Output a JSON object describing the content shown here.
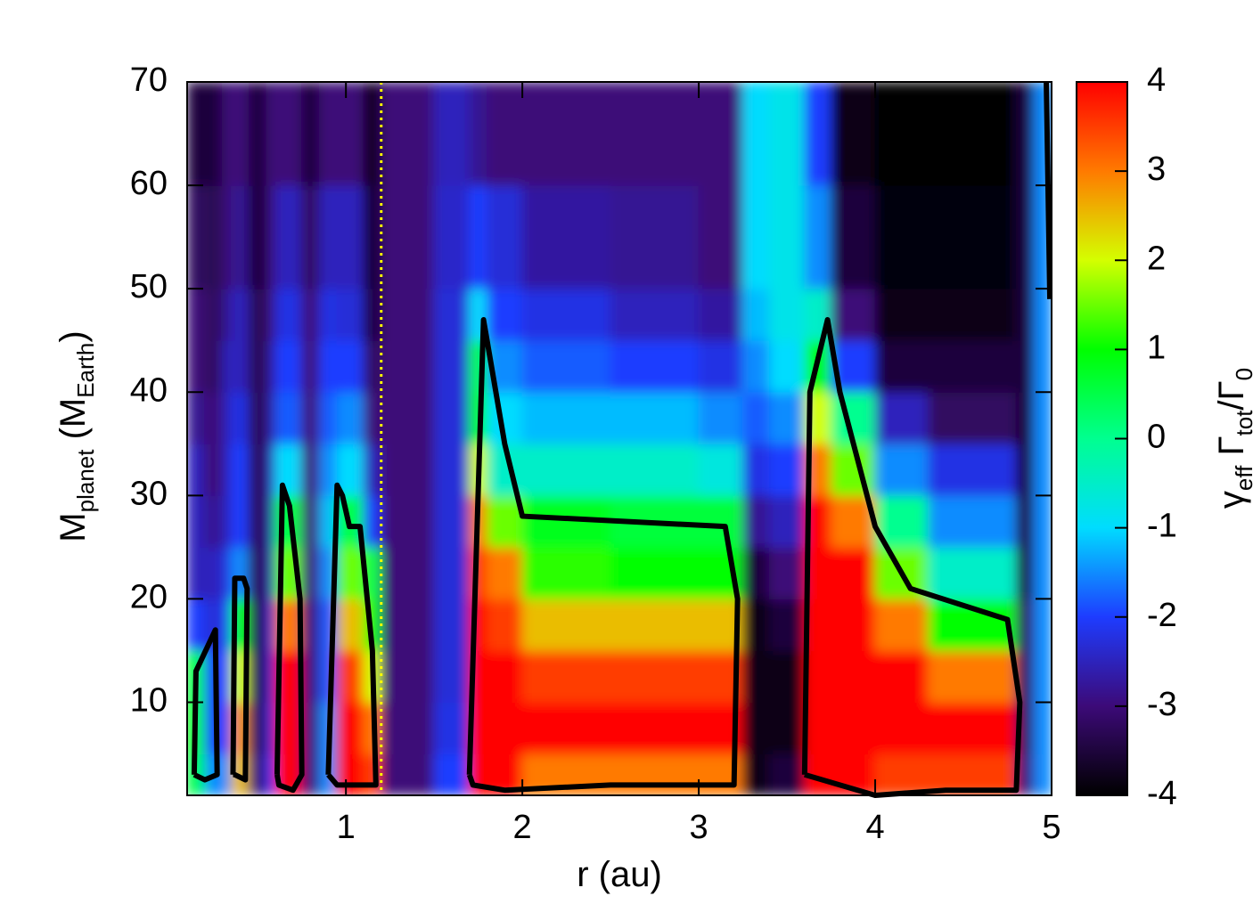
{
  "chart_data": {
    "type": "heatmap",
    "xlabel": "r (au)",
    "ylabel_parts": [
      "M",
      "planet",
      " (M",
      "Earth",
      ")"
    ],
    "colorbar_label_parts": [
      "γ",
      "eff",
      " Γ",
      "tot",
      "/Γ",
      "0"
    ],
    "x_edges": [
      0.1,
      0.2,
      0.3,
      0.35,
      0.45,
      0.55,
      0.6,
      0.75,
      0.85,
      0.95,
      1.1,
      1.2,
      1.5,
      1.7,
      1.8,
      2.0,
      2.5,
      3.0,
      3.25,
      3.4,
      3.6,
      3.75,
      4.0,
      4.3,
      4.8,
      4.9,
      5.0
    ],
    "y_edges": [
      1,
      5,
      10,
      15,
      20,
      25,
      30,
      35,
      40,
      45,
      50,
      60,
      70
    ],
    "values": [
      [
        0.5,
        0.8,
        0.6,
        -2,
        -2.5,
        -2.5,
        -2.5,
        -2.8,
        -3,
        -3,
        -3.2,
        -3.5
      ],
      [
        -1.5,
        -2,
        -2,
        -2.3,
        -2.5,
        -2.8,
        -3,
        -3,
        -3.2,
        -3.2,
        -3.3,
        -3.5
      ],
      [
        -1.5,
        -2,
        -2,
        -2,
        -2.2,
        -2.5,
        -2.5,
        -2.5,
        -2.5,
        -2.8,
        -3,
        -3
      ],
      [
        2.5,
        2.8,
        2,
        1,
        -1.5,
        -2,
        -2,
        -2.2,
        -2.5,
        -2.5,
        -2.8,
        -3
      ],
      [
        -3,
        -3.2,
        -3.3,
        -3.3,
        -3.3,
        -3.3,
        -3.3,
        -3.3,
        -3.3,
        -3.3,
        -3.5,
        -3.5
      ],
      [
        -2,
        -2.2,
        -2.3,
        -2.3,
        -2.5,
        -2.5,
        -2.5,
        -2.7,
        -2.8,
        -3,
        -3,
        -3
      ],
      [
        4,
        4,
        4,
        3,
        1.5,
        0.5,
        -1,
        -1.8,
        -2,
        -2.2,
        -2.5,
        -3
      ],
      [
        -3,
        -3,
        -3,
        -3,
        -3,
        -3,
        -3,
        -3,
        -3,
        -3,
        -3.2,
        -3.5
      ],
      [
        -1.5,
        -1.5,
        -1.8,
        -1.8,
        -1.5,
        -1.2,
        -1.5,
        -1.8,
        -2,
        -2.2,
        -2.5,
        -3
      ],
      [
        4,
        4,
        3.5,
        2.5,
        1.5,
        0.5,
        -1,
        -1.5,
        -2,
        -2.3,
        -2.5,
        -3
      ],
      [
        3.5,
        3,
        2,
        1,
        0.5,
        -2,
        -2.5,
        -3,
        -3.2,
        -3.5,
        -3.6,
        -3.8
      ],
      [
        -3,
        -3,
        -3,
        -3,
        -3,
        -3,
        -3,
        -3,
        -3,
        -3,
        -3,
        -3
      ],
      [
        -2,
        -2.2,
        -2.3,
        -2.3,
        -2.3,
        -2.3,
        -2.3,
        -2.3,
        -2.3,
        -2.3,
        -2.4,
        -2.5
      ],
      [
        4,
        4,
        4,
        4,
        3.5,
        3,
        2,
        1,
        0.5,
        -1,
        -2,
        -2.8
      ],
      [
        4,
        4,
        4,
        3.5,
        3,
        1.5,
        -0.5,
        -1,
        -1.5,
        -2,
        -2.3,
        -3
      ],
      [
        3,
        4,
        3.5,
        2.5,
        1.2,
        0.8,
        -0.5,
        -1.2,
        -1.8,
        -2.2,
        -2.7,
        -3
      ],
      [
        3,
        4,
        3.5,
        2.5,
        1,
        0.6,
        -0.5,
        -1.2,
        -2,
        -2.5,
        -2.8,
        -3
      ],
      [
        3,
        4,
        3.5,
        2.5,
        1,
        0.6,
        -0.7,
        -1.5,
        -2.2,
        -2.7,
        -3,
        -3
      ],
      [
        -3.8,
        -3.8,
        -3.8,
        -3.8,
        -3.5,
        -2.8,
        -2.2,
        -1.8,
        -1.5,
        -1.2,
        -1,
        -1
      ],
      [
        -3.5,
        -3.8,
        -3.8,
        -3.5,
        -3,
        -2.5,
        -2,
        -1.5,
        -1,
        -0.8,
        -0.8,
        -0.8
      ],
      [
        4,
        4,
        4,
        4,
        4,
        4,
        3,
        2,
        1,
        -0.5,
        -1.5,
        -2
      ],
      [
        4,
        4,
        4,
        4,
        4,
        3,
        1.5,
        0,
        -2,
        -3,
        -3.5,
        -3.8
      ],
      [
        3.5,
        4,
        4,
        3,
        1.5,
        0,
        -1.5,
        -2.5,
        -3.5,
        -3.8,
        -3.9,
        -4
      ],
      [
        3.5,
        4,
        3,
        1,
        -0.5,
        -1.5,
        -2.2,
        -3.2,
        -3.5,
        -3.8,
        -3.9,
        -4
      ],
      [
        -3,
        -3.2,
        -3.2,
        -3.2,
        -3.5,
        -3.5,
        -3.5,
        -3.5,
        -3.5,
        -3.5,
        -3.5,
        -3.5
      ],
      [
        -1.5,
        -1.5,
        -1.5,
        -1.5,
        -1.5,
        -1.5,
        -1.5,
        -1.5,
        -1.5,
        -1.5,
        -1.5,
        -1.5
      ]
    ],
    "contours": [
      {
        "x": [
          0.14,
          0.15,
          0.26,
          0.27,
          0.2,
          0.14
        ],
        "y": [
          3,
          13,
          17,
          3,
          2.5,
          3
        ]
      },
      {
        "x": [
          0.36,
          0.37,
          0.42,
          0.44,
          0.43,
          0.37,
          0.36
        ],
        "y": [
          3,
          22,
          22,
          21,
          2.5,
          3,
          3
        ]
      },
      {
        "x": [
          0.61,
          0.64,
          0.68,
          0.74,
          0.75,
          0.7,
          0.62,
          0.61
        ],
        "y": [
          3,
          31,
          29,
          20,
          3,
          1.5,
          2,
          3
        ]
      },
      {
        "x": [
          0.9,
          0.95,
          0.98,
          1.02,
          1.08,
          1.15,
          1.17,
          1.1,
          0.95,
          0.9
        ],
        "y": [
          3,
          31,
          30,
          27,
          27,
          15,
          2,
          2,
          2,
          3
        ]
      },
      {
        "x": [
          1.7,
          1.78,
          1.9,
          2.0,
          3.15,
          3.22,
          3.2,
          2.5,
          1.9,
          1.72,
          1.7
        ],
        "y": [
          3,
          47,
          35,
          28,
          27,
          20,
          2,
          2,
          1.5,
          2,
          3
        ]
      },
      {
        "x": [
          3.6,
          3.63,
          3.73,
          3.8,
          4.0,
          4.2,
          4.75,
          4.82,
          4.8,
          4.4,
          4.0,
          3.8,
          3.6
        ],
        "y": [
          3,
          40,
          47,
          40,
          27,
          21,
          18,
          10,
          1.5,
          1.5,
          1,
          2,
          3
        ]
      },
      {
        "x": [
          4.97,
          4.99
        ],
        "y": [
          70,
          49
        ]
      }
    ],
    "contour_color": "#000000",
    "vline": 1.2,
    "vline_color": "#ffff00",
    "xlim": [
      0.1,
      5
    ],
    "ylim": [
      1,
      70
    ],
    "xticks": [
      1,
      2,
      3,
      4,
      5
    ],
    "yticks": [
      10,
      20,
      30,
      40,
      50,
      60,
      70
    ],
    "clim": [
      -4,
      4
    ],
    "cticks": [
      -4,
      -3,
      -2,
      -1,
      0,
      1,
      2,
      3,
      4
    ],
    "colormap": [
      "#000000",
      "#3c0a78",
      "#1e3cff",
      "#00dcff",
      "#00ff90",
      "#00ff00",
      "#d4ff00",
      "#ff7a00",
      "#ff0000"
    ]
  }
}
